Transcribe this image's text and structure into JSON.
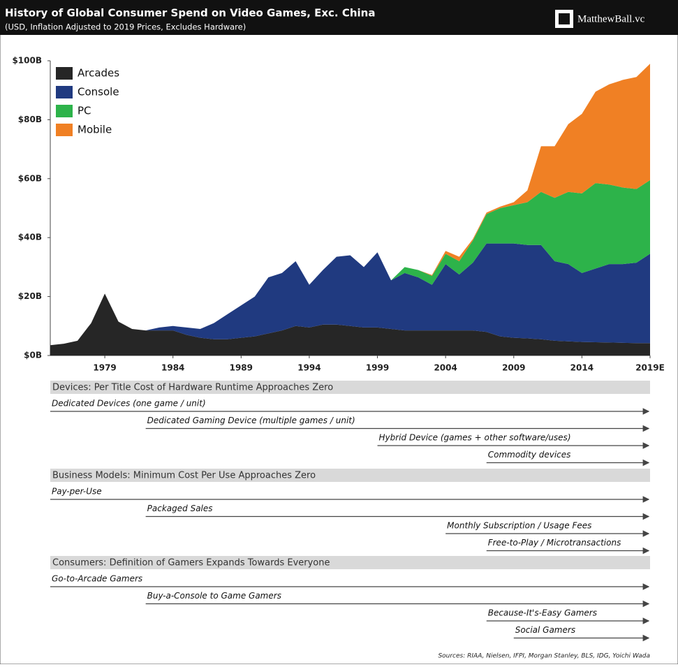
{
  "header": {
    "title": "History of Global Consumer Spend on Video Games, Exc. China",
    "subtitle": "(USD, Inflation Adjusted to 2019 Prices, Excludes Hardware)",
    "logo": "MatthewBall.vc"
  },
  "chart_data": {
    "type": "stacked_area",
    "x": [
      1975,
      1976,
      1977,
      1978,
      1979,
      1980,
      1981,
      1982,
      1983,
      1984,
      1985,
      1986,
      1987,
      1988,
      1989,
      1990,
      1991,
      1992,
      1993,
      1994,
      1995,
      1996,
      1997,
      1998,
      1999,
      2000,
      2001,
      2002,
      2003,
      2004,
      2005,
      2006,
      2007,
      2008,
      2009,
      2010,
      2011,
      2012,
      2013,
      2014,
      2015,
      2016,
      2017,
      2018,
      2019
    ],
    "series": [
      {
        "name": "Arcades",
        "color": "#262626",
        "values": [
          3.5,
          4,
          5,
          11,
          21,
          11.5,
          9,
          8.5,
          8.5,
          8.5,
          7,
          6,
          5.5,
          5.5,
          6,
          6.5,
          7.5,
          8.5,
          10,
          9.5,
          10.5,
          10.5,
          10,
          9.5,
          9.5,
          9,
          8.5,
          8.5,
          8.5,
          8.5,
          8.5,
          8.5,
          8,
          6.5,
          6,
          5.8,
          5.5,
          5,
          4.8,
          4.6,
          4.5,
          4.4,
          4.3,
          4.2,
          4.2
        ]
      },
      {
        "name": "Console",
        "color": "#203a80",
        "values": [
          0,
          0,
          0,
          0,
          0,
          0,
          0,
          0,
          1,
          1.5,
          2.5,
          3,
          5.5,
          8.5,
          11,
          13.5,
          19,
          19.5,
          22,
          14.5,
          18.5,
          23,
          24,
          20.5,
          25.5,
          16.5,
          19.5,
          18,
          15.5,
          22.5,
          19,
          23,
          30,
          31.5,
          32,
          31.7,
          32,
          27,
          26.2,
          23.4,
          25,
          26.6,
          26.7,
          27.3,
          30.3
        ]
      },
      {
        "name": "PC",
        "color": "#2db34a",
        "values": [
          0,
          0,
          0,
          0,
          0,
          0,
          0,
          0,
          0,
          0,
          0,
          0,
          0,
          0,
          0,
          0,
          0,
          0,
          0,
          0,
          0,
          0,
          0,
          0,
          0,
          0,
          2,
          2.5,
          3,
          3.5,
          4.5,
          7.5,
          10,
          12,
          13,
          14.5,
          18,
          21.5,
          24.5,
          27,
          29,
          27,
          26,
          25,
          25
        ]
      },
      {
        "name": "Mobile",
        "color": "#f08024",
        "values": [
          0,
          0,
          0,
          0,
          0,
          0,
          0,
          0,
          0,
          0,
          0,
          0,
          0,
          0,
          0,
          0,
          0,
          0,
          0,
          0,
          0,
          0,
          0,
          0,
          0,
          0,
          0,
          0,
          0.3,
          1,
          1.5,
          0.5,
          0.5,
          0.5,
          1,
          4,
          15.5,
          17.5,
          23,
          27,
          31,
          34,
          36.5,
          38,
          39.5
        ]
      }
    ],
    "xlim": [
      1975,
      2019
    ],
    "xticks": [
      1979,
      1984,
      1989,
      1994,
      1999,
      2004,
      2009,
      2014,
      {
        "value": 2019,
        "label": "2019E"
      }
    ],
    "ylim": [
      0,
      100
    ],
    "yticks": [
      {
        "value": 0,
        "label": "$0B"
      },
      {
        "value": 20,
        "label": "$20B"
      },
      {
        "value": 40,
        "label": "$40B"
      },
      {
        "value": 60,
        "label": "$60B"
      },
      {
        "value": 80,
        "label": "$80B"
      },
      {
        "value": 100,
        "label": "$100B"
      }
    ],
    "legend": "upper-left"
  },
  "timeline": [
    {
      "header": "Devices: Per Title Cost of Hardware Runtime Approaches Zero",
      "rows": [
        {
          "label": "Dedicated Devices (one game / unit)",
          "start": 1975
        },
        {
          "label": "Dedicated Gaming Device (multiple games / unit)",
          "start": 1982
        },
        {
          "label": "Hybrid Device (games + other software/uses)",
          "start": 1999
        },
        {
          "label": "Commodity devices",
          "start": 2007
        }
      ]
    },
    {
      "header": "Business Models: Minimum Cost Per Use Approaches Zero",
      "rows": [
        {
          "label": "Pay-per-Use",
          "start": 1975
        },
        {
          "label": "Packaged Sales",
          "start": 1982
        },
        {
          "label": "Monthly Subscription / Usage Fees",
          "start": 2004
        },
        {
          "label": "Free-to-Play / Microtransactions",
          "start": 2007
        }
      ]
    },
    {
      "header": "Consumers: Definition of Gamers Expands Towards Everyone",
      "rows": [
        {
          "label": "Go-to-Arcade Gamers",
          "start": 1975
        },
        {
          "label": "Buy-a-Console to Game Gamers",
          "start": 1982
        },
        {
          "label": "Because-It's-Easy Gamers",
          "start": 2007
        },
        {
          "label": "Social Gamers",
          "start": 2009
        }
      ]
    }
  ],
  "sources": "Sources: RIAA, Nielsen, IFPI, Morgan Stanley, BLS, IDG, Yoichi Wada"
}
